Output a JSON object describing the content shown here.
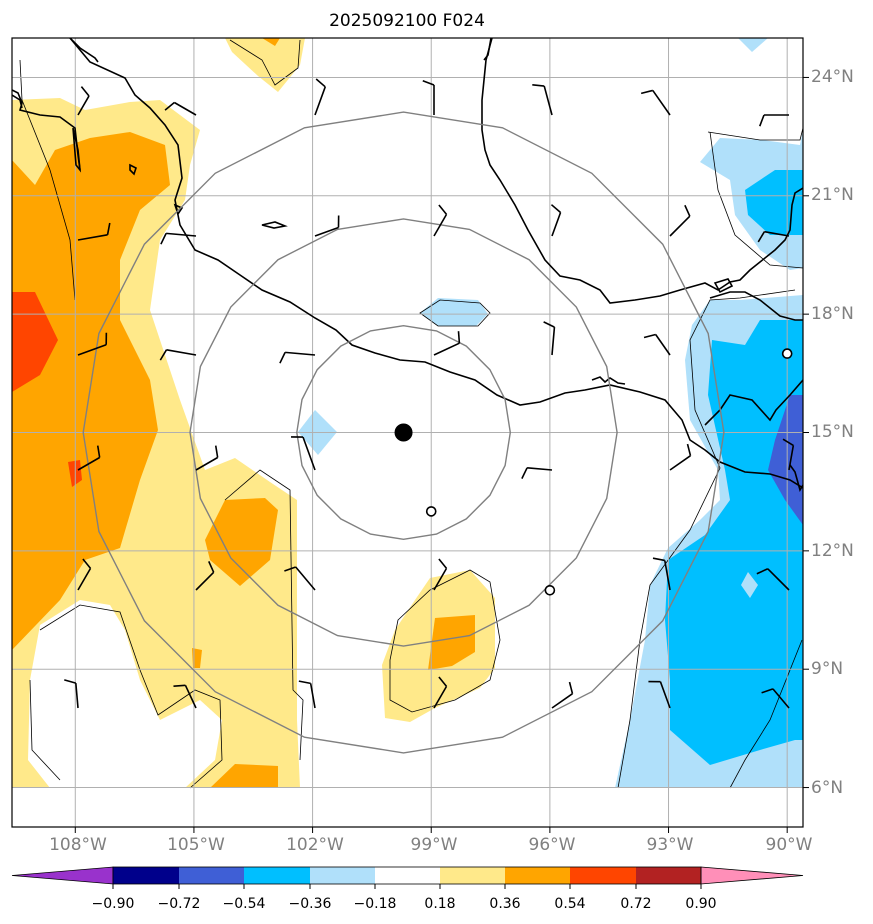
{
  "title": "2025092100 F024",
  "colors": {
    "grid": "#b0b0b0",
    "range_ring": "#808080",
    "coast": "#000000",
    "c_pos_018": "#ffe98a",
    "c_pos_036": "#ffa500",
    "c_pos_054": "#ff4500",
    "c_pos_072": "#b22222",
    "c_pos_090": "#ff8fb8",
    "c_neg_018": "#b0e0fa",
    "c_neg_036": "#00bfff",
    "c_neg_054": "#3f5fd6",
    "c_neg_072": "#00008b",
    "c_neg_090": "#9932cc"
  },
  "map": {
    "lon_range": [
      -109.6,
      -89.6
    ],
    "lat_range": [
      5.0,
      25.0
    ],
    "lon_ticks": [
      "108°W",
      "105°W",
      "102°W",
      "99°W",
      "96°W",
      "93°W",
      "90°W"
    ],
    "lat_ticks": [
      "24°N",
      "21°N",
      "18°N",
      "15°N",
      "12°N",
      "9°N",
      "6°N"
    ],
    "storm_center": {
      "lon": -99.7,
      "lat": 15.0
    },
    "range_ring_radii_deg": [
      2.7,
      5.4,
      8.1
    ],
    "observation_markers": [
      {
        "lon": -99.0,
        "lat": 13.0
      },
      {
        "lon": -96.0,
        "lat": 11.0
      },
      {
        "lon": -90.0,
        "lat": 17.0
      }
    ]
  },
  "colorbar": {
    "ticks": [
      "−0.90",
      "−0.72",
      "−0.54",
      "−0.36",
      "−0.18",
      "0.18",
      "0.36",
      "0.54",
      "0.72",
      "0.90"
    ],
    "levels": [
      -0.9,
      -0.72,
      -0.54,
      -0.36,
      -0.18,
      0.18,
      0.36,
      0.54,
      0.72,
      0.9
    ],
    "extend": "both"
  }
}
